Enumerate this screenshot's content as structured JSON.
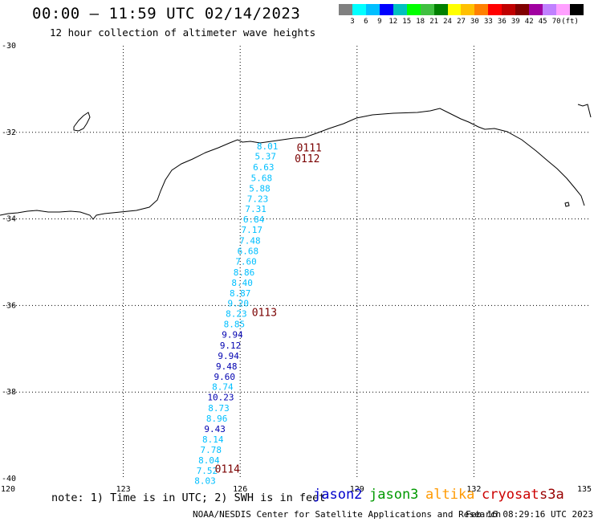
{
  "header": {
    "title": "00:00 – 11:59 UTC 02/14/2023",
    "subtitle": "12 hour collection of altimeter wave heights"
  },
  "colorbar": {
    "colors": [
      "#808080",
      "#00ffff",
      "#00bfff",
      "#0000ff",
      "#00c0c0",
      "#00ff00",
      "#40c040",
      "#008000",
      "#ffff00",
      "#ffc000",
      "#ff8000",
      "#ff0000",
      "#c00000",
      "#800000",
      "#a000a0",
      "#c080ff",
      "#ffa0ff",
      "#000000"
    ],
    "labels": [
      "3",
      "6",
      "9",
      "12",
      "15",
      "18",
      "21",
      "24",
      "27",
      "30",
      "33",
      "36",
      "39",
      "42",
      "45",
      "70",
      "(ft)"
    ]
  },
  "axes": {
    "lat_ticks": [
      "-30",
      "-32",
      "-34",
      "-36",
      "-38",
      "-40"
    ],
    "lon_ticks": [
      "120",
      "123",
      "126",
      "129",
      "132",
      "135"
    ],
    "lat_range": [
      -30,
      -40
    ],
    "lon_range": [
      120,
      135
    ]
  },
  "track": {
    "points": [
      {
        "v": "8.01",
        "lon": 126.7,
        "lat": -32.32,
        "c": "#00bfff"
      },
      {
        "v": "5.37",
        "lon": 126.65,
        "lat": -32.55,
        "c": "#00bfff"
      },
      {
        "v": "6.63",
        "lon": 126.6,
        "lat": -32.8,
        "c": "#00bfff"
      },
      {
        "v": "5.68",
        "lon": 126.55,
        "lat": -33.05,
        "c": "#00bfff"
      },
      {
        "v": "5.88",
        "lon": 126.5,
        "lat": -33.29,
        "c": "#00bfff"
      },
      {
        "v": "7.23",
        "lon": 126.45,
        "lat": -33.53,
        "c": "#00bfff"
      },
      {
        "v": "7.31",
        "lon": 126.4,
        "lat": -33.77,
        "c": "#00bfff"
      },
      {
        "v": "6.84",
        "lon": 126.35,
        "lat": -34.01,
        "c": "#00bfff"
      },
      {
        "v": "7.17",
        "lon": 126.3,
        "lat": -34.25,
        "c": "#00bfff"
      },
      {
        "v": "7.48",
        "lon": 126.25,
        "lat": -34.5,
        "c": "#00bfff"
      },
      {
        "v": "6.68",
        "lon": 126.2,
        "lat": -34.74,
        "c": "#00bfff"
      },
      {
        "v": "7.60",
        "lon": 126.15,
        "lat": -34.98,
        "c": "#00bfff"
      },
      {
        "v": "8.86",
        "lon": 126.1,
        "lat": -35.23,
        "c": "#00bfff"
      },
      {
        "v": "8.40",
        "lon": 126.05,
        "lat": -35.47,
        "c": "#00bfff"
      },
      {
        "v": "8.87",
        "lon": 126.0,
        "lat": -35.71,
        "c": "#00bfff"
      },
      {
        "v": "9.20",
        "lon": 125.95,
        "lat": -35.95,
        "c": "#00bfff"
      },
      {
        "v": "8.23",
        "lon": 125.9,
        "lat": -36.19,
        "c": "#00bfff"
      },
      {
        "v": "8.85",
        "lon": 125.85,
        "lat": -36.43,
        "c": "#00bfff"
      },
      {
        "v": "9.94",
        "lon": 125.8,
        "lat": -36.67,
        "c": "#0000b0"
      },
      {
        "v": "9.12",
        "lon": 125.75,
        "lat": -36.92,
        "c": "#0000b0"
      },
      {
        "v": "9.94",
        "lon": 125.7,
        "lat": -37.16,
        "c": "#0000b0"
      },
      {
        "v": "9.48",
        "lon": 125.65,
        "lat": -37.4,
        "c": "#0000b0"
      },
      {
        "v": "9.60",
        "lon": 125.6,
        "lat": -37.64,
        "c": "#0000b0"
      },
      {
        "v": "8.74",
        "lon": 125.55,
        "lat": -37.88,
        "c": "#00bfff"
      },
      {
        "v": "10.23",
        "lon": 125.5,
        "lat": -38.12,
        "c": "#0000b0"
      },
      {
        "v": "8.73",
        "lon": 125.45,
        "lat": -38.37,
        "c": "#00bfff"
      },
      {
        "v": "8.96",
        "lon": 125.4,
        "lat": -38.61,
        "c": "#00bfff"
      },
      {
        "v": "9.43",
        "lon": 125.35,
        "lat": -38.85,
        "c": "#0000b0"
      },
      {
        "v": "8.14",
        "lon": 125.3,
        "lat": -39.09,
        "c": "#00bfff"
      },
      {
        "v": "7.78",
        "lon": 125.25,
        "lat": -39.33,
        "c": "#00bfff"
      },
      {
        "v": "8.04",
        "lon": 125.2,
        "lat": -39.57,
        "c": "#00bfff"
      },
      {
        "v": "7.52",
        "lon": 125.15,
        "lat": -39.81,
        "c": "#00bfff"
      },
      {
        "v": "8.03",
        "lon": 125.1,
        "lat": -40.05,
        "c": "#00bfff"
      }
    ],
    "time_labels": [
      {
        "t": "0111",
        "lon": 127.45,
        "lat": -32.35
      },
      {
        "t": "0112",
        "lon": 127.4,
        "lat": -32.6
      },
      {
        "t": "0113",
        "lon": 126.3,
        "lat": -36.15
      },
      {
        "t": "0114",
        "lon": 125.35,
        "lat": -39.77
      }
    ]
  },
  "footer": {
    "note": "note: 1) Time is in UTC; 2) SWH is in feet",
    "satellites": [
      {
        "name": "jason2",
        "color": "#0000cc"
      },
      {
        "name": "jason3",
        "color": "#009900"
      },
      {
        "name": "altika",
        "color": "#ff9900"
      },
      {
        "name": "cryosat",
        "color": "#cc0000"
      },
      {
        "name": "s3a",
        "color": "#990000"
      }
    ],
    "credit": "NOAA/NESDIS Center for Satellite Applications and Research",
    "timestamp": "Feb 16 08:29:16 UTC 2023"
  }
}
